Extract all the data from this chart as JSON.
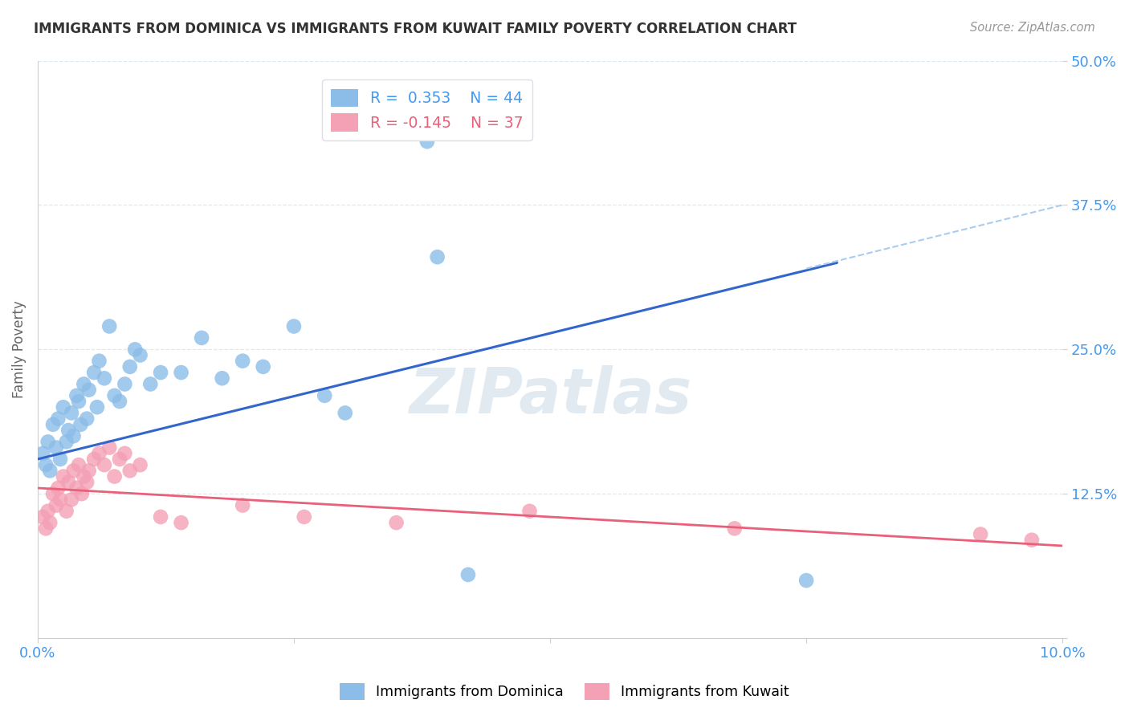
{
  "title": "IMMIGRANTS FROM DOMINICA VS IMMIGRANTS FROM KUWAIT FAMILY POVERTY CORRELATION CHART",
  "source_text": "Source: ZipAtlas.com",
  "ylabel": "Family Poverty",
  "xlim": [
    0.0,
    10.0
  ],
  "ylim": [
    0.0,
    50.0
  ],
  "xticks": [
    0.0,
    2.5,
    5.0,
    7.5,
    10.0
  ],
  "xtick_labels": [
    "0.0%",
    "",
    "",
    "",
    "10.0%"
  ],
  "yticks": [
    0.0,
    12.5,
    25.0,
    37.5,
    50.0
  ],
  "ytick_labels": [
    "",
    "12.5%",
    "25.0%",
    "37.5%",
    "50.0%"
  ],
  "dominica_R": 0.353,
  "dominica_N": 44,
  "kuwait_R": -0.145,
  "kuwait_N": 37,
  "dominica_color": "#8bbde8",
  "kuwait_color": "#f4a0b5",
  "dominica_line_color": "#3366cc",
  "kuwait_line_color": "#e8607a",
  "dashed_line_color": "#aaccee",
  "axis_color": "#4499ee",
  "grid_color": "#dde8f0",
  "watermark": "ZIPatlas",
  "background_color": "#ffffff",
  "dominica_x": [
    0.05,
    0.08,
    0.1,
    0.12,
    0.15,
    0.18,
    0.2,
    0.22,
    0.25,
    0.28,
    0.3,
    0.33,
    0.35,
    0.38,
    0.4,
    0.42,
    0.45,
    0.48,
    0.5,
    0.55,
    0.58,
    0.6,
    0.65,
    0.7,
    0.75,
    0.8,
    0.85,
    0.9,
    0.95,
    1.0,
    1.1,
    1.2,
    1.4,
    1.6,
    1.8,
    2.0,
    2.2,
    2.5,
    2.8,
    3.0,
    3.8,
    3.9,
    4.2,
    7.5
  ],
  "dominica_y": [
    16.0,
    15.0,
    17.0,
    14.5,
    18.5,
    16.5,
    19.0,
    15.5,
    20.0,
    17.0,
    18.0,
    19.5,
    17.5,
    21.0,
    20.5,
    18.5,
    22.0,
    19.0,
    21.5,
    23.0,
    20.0,
    24.0,
    22.5,
    27.0,
    21.0,
    20.5,
    22.0,
    23.5,
    25.0,
    24.5,
    22.0,
    23.0,
    23.0,
    26.0,
    22.5,
    24.0,
    23.5,
    27.0,
    21.0,
    19.5,
    43.0,
    33.0,
    5.5,
    5.0
  ],
  "kuwait_x": [
    0.05,
    0.08,
    0.1,
    0.12,
    0.15,
    0.18,
    0.2,
    0.22,
    0.25,
    0.28,
    0.3,
    0.33,
    0.35,
    0.38,
    0.4,
    0.43,
    0.45,
    0.48,
    0.5,
    0.55,
    0.6,
    0.65,
    0.7,
    0.75,
    0.8,
    0.85,
    0.9,
    1.0,
    1.2,
    1.4,
    2.0,
    2.6,
    3.5,
    4.8,
    6.8,
    9.2,
    9.7
  ],
  "kuwait_y": [
    10.5,
    9.5,
    11.0,
    10.0,
    12.5,
    11.5,
    13.0,
    12.0,
    14.0,
    11.0,
    13.5,
    12.0,
    14.5,
    13.0,
    15.0,
    12.5,
    14.0,
    13.5,
    14.5,
    15.5,
    16.0,
    15.0,
    16.5,
    14.0,
    15.5,
    16.0,
    14.5,
    15.0,
    10.5,
    10.0,
    11.5,
    10.5,
    10.0,
    11.0,
    9.5,
    9.0,
    8.5
  ],
  "blue_line_x": [
    0.0,
    7.8
  ],
  "blue_line_y": [
    15.5,
    32.5
  ],
  "dash_line_x": [
    7.5,
    10.0
  ],
  "dash_line_y": [
    32.0,
    37.5
  ],
  "pink_line_x": [
    0.0,
    10.0
  ],
  "pink_line_y": [
    13.0,
    8.0
  ]
}
